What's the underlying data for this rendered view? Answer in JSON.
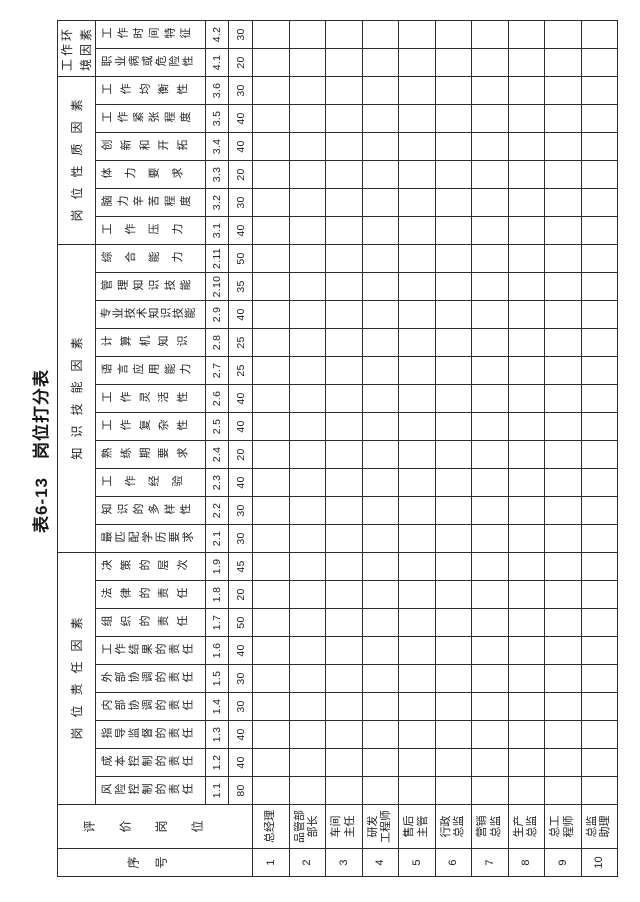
{
  "page_title": "表6-13　岗位打分表",
  "table": {
    "serial_header": "序号",
    "position_header": "评价岗位",
    "groups": [
      {
        "label": "岗位责任因素",
        "factors": [
          {
            "name": "风险控制的责任",
            "code": "1.1",
            "weight": "80"
          },
          {
            "name": "成本控制的责任",
            "code": "1.2",
            "weight": "40"
          },
          {
            "name": "指导监督的责任",
            "code": "1.3",
            "weight": "40"
          },
          {
            "name": "内部协调的责任",
            "code": "1.4",
            "weight": "30"
          },
          {
            "name": "外部协调的责任",
            "code": "1.5",
            "weight": "30"
          },
          {
            "name": "工作结果的责任",
            "code": "1.6",
            "weight": "40"
          },
          {
            "name": "组织的责任",
            "code": "1.7",
            "weight": "50"
          },
          {
            "name": "法律的责任",
            "code": "1.8",
            "weight": "20"
          },
          {
            "name": "决策的层次",
            "code": "1.9",
            "weight": "45"
          }
        ]
      },
      {
        "label": "知识技能因素",
        "factors": [
          {
            "name": "最匹配学历要求",
            "code": "2.1",
            "weight": "30"
          },
          {
            "name": "知识的多样性",
            "code": "2.2",
            "weight": "30"
          },
          {
            "name": "工作经验",
            "code": "2.3",
            "weight": "40"
          },
          {
            "name": "熟练期要求",
            "code": "2.4",
            "weight": "20"
          },
          {
            "name": "工作复杂性",
            "code": "2.5",
            "weight": "40"
          },
          {
            "name": "工作灵活性",
            "code": "2.6",
            "weight": "40"
          },
          {
            "name": "语言应用能力",
            "code": "2.7",
            "weight": "25"
          },
          {
            "name": "计算机知识",
            "code": "2.8",
            "weight": "25"
          },
          {
            "name": "专业技术知识技能",
            "code": "2.9",
            "weight": "40"
          },
          {
            "name": "管理知识技能",
            "code": "2.10",
            "weight": "35"
          },
          {
            "name": "综合能力",
            "code": "2.11",
            "weight": "50"
          }
        ]
      },
      {
        "label": "岗位性质因素",
        "factors": [
          {
            "name": "工作压力",
            "code": "3.1",
            "weight": "40"
          },
          {
            "name": "脑力辛苦程度",
            "code": "3.2",
            "weight": "30"
          },
          {
            "name": "体力要求",
            "code": "3.3",
            "weight": "20"
          },
          {
            "name": "创新和开拓",
            "code": "3.4",
            "weight": "40"
          },
          {
            "name": "工作紧张程度",
            "code": "3.5",
            "weight": "40"
          },
          {
            "name": "工作均衡性",
            "code": "3.6",
            "weight": "30"
          }
        ]
      },
      {
        "label": "工作环\n境因素",
        "factors": [
          {
            "name": "职业病或危险性",
            "code": "4.1",
            "weight": "20"
          },
          {
            "name": "工作时间特征",
            "code": "4.2",
            "weight": "30"
          }
        ]
      }
    ],
    "rows": [
      {
        "no": "1",
        "position": "总经理"
      },
      {
        "no": "2",
        "position": "品管部\n部长"
      },
      {
        "no": "3",
        "position": "车间\n主任"
      },
      {
        "no": "4",
        "position": "研发\n工程师"
      },
      {
        "no": "5",
        "position": "售后\n主管"
      },
      {
        "no": "6",
        "position": "行政\n总监"
      },
      {
        "no": "7",
        "position": "营销\n总监"
      },
      {
        "no": "8",
        "position": "生产\n总监"
      },
      {
        "no": "9",
        "position": "总工\n程师"
      },
      {
        "no": "10",
        "position": "总监\n助理"
      }
    ]
  }
}
